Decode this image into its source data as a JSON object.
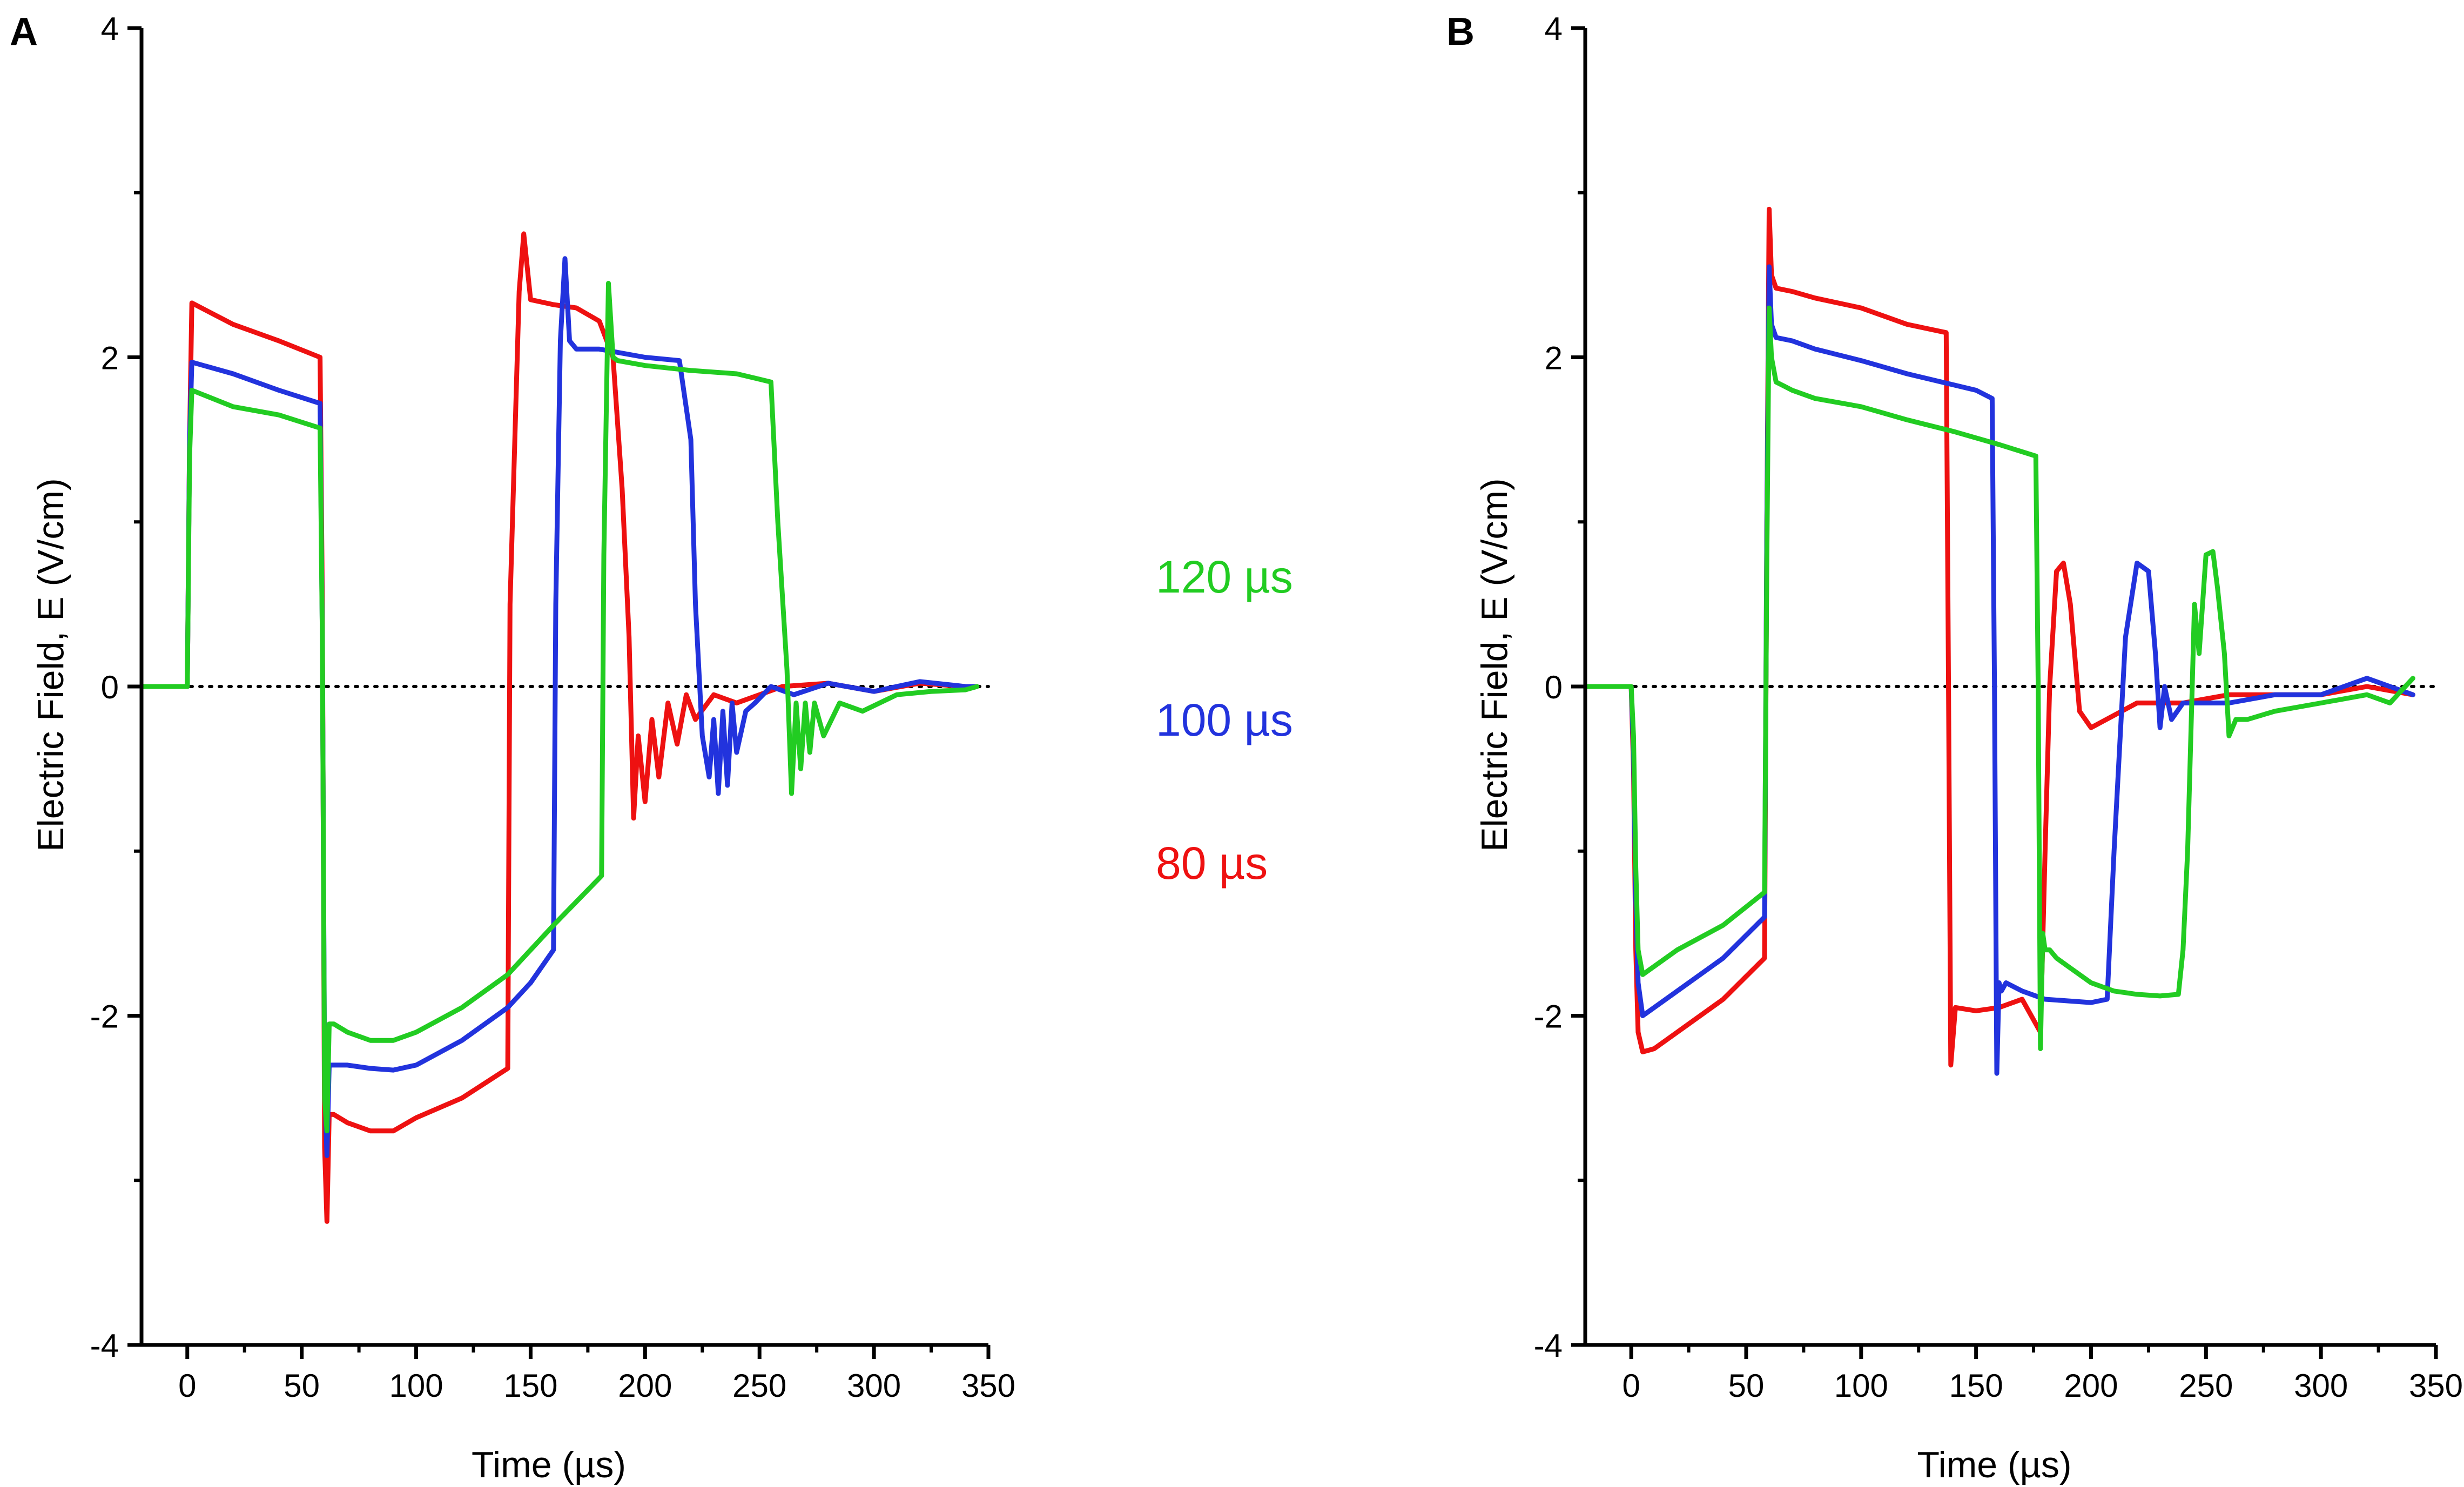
{
  "legend": [
    {
      "label": "120 µs",
      "color": "#22cc22"
    },
    {
      "label": "100 µs",
      "color": "#2233dd"
    },
    {
      "label": "80 µs",
      "color": "#ee1111"
    }
  ],
  "chart_data": [
    {
      "panel_label": "A",
      "type": "line",
      "xlabel": "Time (µs)",
      "ylabel": "Electric Field, E (V/cm)",
      "xlim": [
        -20,
        350
      ],
      "ylim": [
        -4,
        4
      ],
      "x_ticks": [
        0,
        50,
        100,
        150,
        200,
        250,
        300,
        350
      ],
      "y_ticks": [
        -4,
        -2,
        0,
        2,
        4
      ],
      "zero_line": "dotted",
      "series": [
        {
          "name": "80 µs",
          "color": "#ee1111",
          "x": [
            -20,
            0,
            1,
            2,
            20,
            40,
            58,
            59,
            60,
            61,
            62,
            64,
            70,
            80,
            90,
            100,
            120,
            140,
            141,
            145,
            147,
            150,
            160,
            170,
            180,
            186,
            190,
            193,
            195,
            197,
            200,
            203,
            206,
            210,
            214,
            218,
            222,
            230,
            240,
            260,
            280,
            300,
            320,
            340,
            345
          ],
          "y": [
            0,
            0,
            1.5,
            2.33,
            2.2,
            2.1,
            2.0,
            0.5,
            -2.8,
            -3.25,
            -2.6,
            -2.6,
            -2.65,
            -2.7,
            -2.7,
            -2.62,
            -2.5,
            -2.32,
            0.5,
            2.4,
            2.75,
            2.35,
            2.32,
            2.3,
            2.22,
            2.0,
            1.2,
            0.3,
            -0.8,
            -0.3,
            -0.7,
            -0.2,
            -0.55,
            -0.1,
            -0.35,
            -0.05,
            -0.2,
            -0.05,
            -0.1,
            0,
            0.02,
            -0.03,
            0.02,
            0,
            0
          ]
        },
        {
          "name": "100 µs",
          "color": "#2233dd",
          "x": [
            -20,
            0,
            1,
            2,
            20,
            40,
            58,
            59,
            60,
            61,
            62,
            64,
            70,
            80,
            90,
            100,
            120,
            140,
            150,
            160,
            161,
            163,
            165,
            167,
            170,
            180,
            200,
            215,
            220,
            222,
            225,
            228,
            230,
            232,
            234,
            236,
            238,
            240,
            244,
            248,
            255,
            265,
            280,
            300,
            320,
            340,
            345
          ],
          "y": [
            0,
            0,
            1.5,
            1.97,
            1.9,
            1.8,
            1.72,
            0.3,
            -2.4,
            -2.85,
            -2.3,
            -2.3,
            -2.3,
            -2.32,
            -2.33,
            -2.3,
            -2.15,
            -1.95,
            -1.8,
            -1.6,
            0.5,
            2.1,
            2.6,
            2.1,
            2.05,
            2.05,
            2.0,
            1.98,
            1.5,
            0.5,
            -0.3,
            -0.55,
            -0.2,
            -0.65,
            -0.15,
            -0.6,
            -0.1,
            -0.4,
            -0.15,
            -0.1,
            0,
            -0.05,
            0.02,
            -0.03,
            0.03,
            0,
            0
          ]
        },
        {
          "name": "120 µs",
          "color": "#22cc22",
          "x": [
            -20,
            0,
            1,
            2,
            20,
            40,
            58,
            59,
            60,
            61,
            62,
            64,
            70,
            80,
            90,
            100,
            120,
            140,
            160,
            181,
            182,
            184,
            186,
            188,
            200,
            220,
            240,
            255,
            258,
            262,
            264,
            266,
            268,
            270,
            272,
            274,
            278,
            285,
            295,
            310,
            325,
            340,
            345
          ],
          "y": [
            0,
            0,
            1.4,
            1.8,
            1.7,
            1.65,
            1.57,
            0.3,
            -2.5,
            -2.7,
            -2.05,
            -2.05,
            -2.1,
            -2.15,
            -2.15,
            -2.1,
            -1.95,
            -1.75,
            -1.45,
            -1.15,
            0.8,
            2.45,
            2.0,
            1.98,
            1.95,
            1.92,
            1.9,
            1.85,
            1.0,
            0.1,
            -0.65,
            -0.1,
            -0.5,
            -0.1,
            -0.4,
            -0.1,
            -0.3,
            -0.1,
            -0.15,
            -0.05,
            -0.03,
            -0.02,
            0
          ]
        }
      ]
    },
    {
      "panel_label": "B",
      "type": "line",
      "xlabel": "Time (µs)",
      "ylabel": "Electric Field, E (V/cm)",
      "xlim": [
        -20,
        350
      ],
      "ylim": [
        -4,
        4
      ],
      "x_ticks": [
        0,
        50,
        100,
        150,
        200,
        250,
        300,
        350
      ],
      "y_ticks": [
        -4,
        -2,
        0,
        2,
        4
      ],
      "zero_line": "dotted",
      "series": [
        {
          "name": "80 µs",
          "color": "#ee1111",
          "x": [
            -20,
            0,
            1,
            2,
            3,
            5,
            10,
            20,
            40,
            58,
            59,
            60,
            61,
            63,
            70,
            80,
            100,
            120,
            137,
            138,
            139,
            141,
            150,
            160,
            170,
            178,
            180,
            182,
            185,
            188,
            191,
            195,
            200,
            220,
            240,
            260,
            280,
            300,
            320,
            340
          ],
          "y": [
            0,
            0,
            -0.5,
            -1.6,
            -2.1,
            -2.22,
            -2.2,
            -2.1,
            -1.9,
            -1.65,
            1.0,
            2.9,
            2.5,
            2.42,
            2.4,
            2.36,
            2.3,
            2.2,
            2.15,
            0.0,
            -2.3,
            -1.95,
            -1.97,
            -1.95,
            -1.9,
            -2.1,
            -1.0,
            0.0,
            0.7,
            0.75,
            0.5,
            -0.15,
            -0.25,
            -0.1,
            -0.1,
            -0.05,
            -0.05,
            -0.05,
            0.0,
            -0.05
          ]
        },
        {
          "name": "100 µs",
          "color": "#2233dd",
          "x": [
            -20,
            0,
            1,
            2,
            3,
            5,
            10,
            20,
            40,
            58,
            59,
            60,
            61,
            63,
            70,
            80,
            100,
            120,
            150,
            157,
            158,
            159,
            160,
            161,
            163,
            170,
            180,
            200,
            207,
            210,
            215,
            220,
            225,
            228,
            230,
            232,
            235,
            240,
            260,
            280,
            300,
            320,
            340
          ],
          "y": [
            0,
            0,
            -0.4,
            -1.3,
            -1.8,
            -2.0,
            -1.95,
            -1.85,
            -1.65,
            -1.4,
            1.0,
            2.55,
            2.2,
            2.12,
            2.1,
            2.05,
            1.98,
            1.9,
            1.8,
            1.75,
            0.0,
            -2.35,
            -1.8,
            -1.85,
            -1.8,
            -1.85,
            -1.9,
            -1.92,
            -1.9,
            -1.0,
            0.3,
            0.75,
            0.7,
            0.2,
            -0.25,
            0.0,
            -0.2,
            -0.1,
            -0.1,
            -0.05,
            -0.05,
            0.05,
            -0.05
          ]
        },
        {
          "name": "120 µs",
          "color": "#22cc22",
          "x": [
            -20,
            0,
            1,
            2,
            3,
            5,
            10,
            20,
            40,
            58,
            59,
            60,
            61,
            63,
            70,
            80,
            100,
            120,
            140,
            160,
            176,
            177,
            178,
            179,
            180,
            182,
            185,
            190,
            200,
            210,
            220,
            230,
            238,
            240,
            242,
            244,
            245,
            247,
            250,
            253,
            255,
            258,
            260,
            263,
            268,
            280,
            300,
            320,
            330,
            340
          ],
          "y": [
            0,
            0,
            -0.3,
            -1.1,
            -1.6,
            -1.75,
            -1.7,
            -1.6,
            -1.45,
            -1.25,
            0.8,
            2.3,
            2.0,
            1.85,
            1.8,
            1.75,
            1.7,
            1.62,
            1.55,
            1.47,
            1.4,
            0.0,
            -2.2,
            -1.5,
            -1.6,
            -1.6,
            -1.65,
            -1.7,
            -1.8,
            -1.85,
            -1.87,
            -1.88,
            -1.87,
            -1.6,
            -1.0,
            0.0,
            0.5,
            0.2,
            0.8,
            0.82,
            0.6,
            0.2,
            -0.3,
            -0.2,
            -0.2,
            -0.15,
            -0.1,
            -0.05,
            -0.1,
            0.05
          ]
        }
      ]
    }
  ]
}
